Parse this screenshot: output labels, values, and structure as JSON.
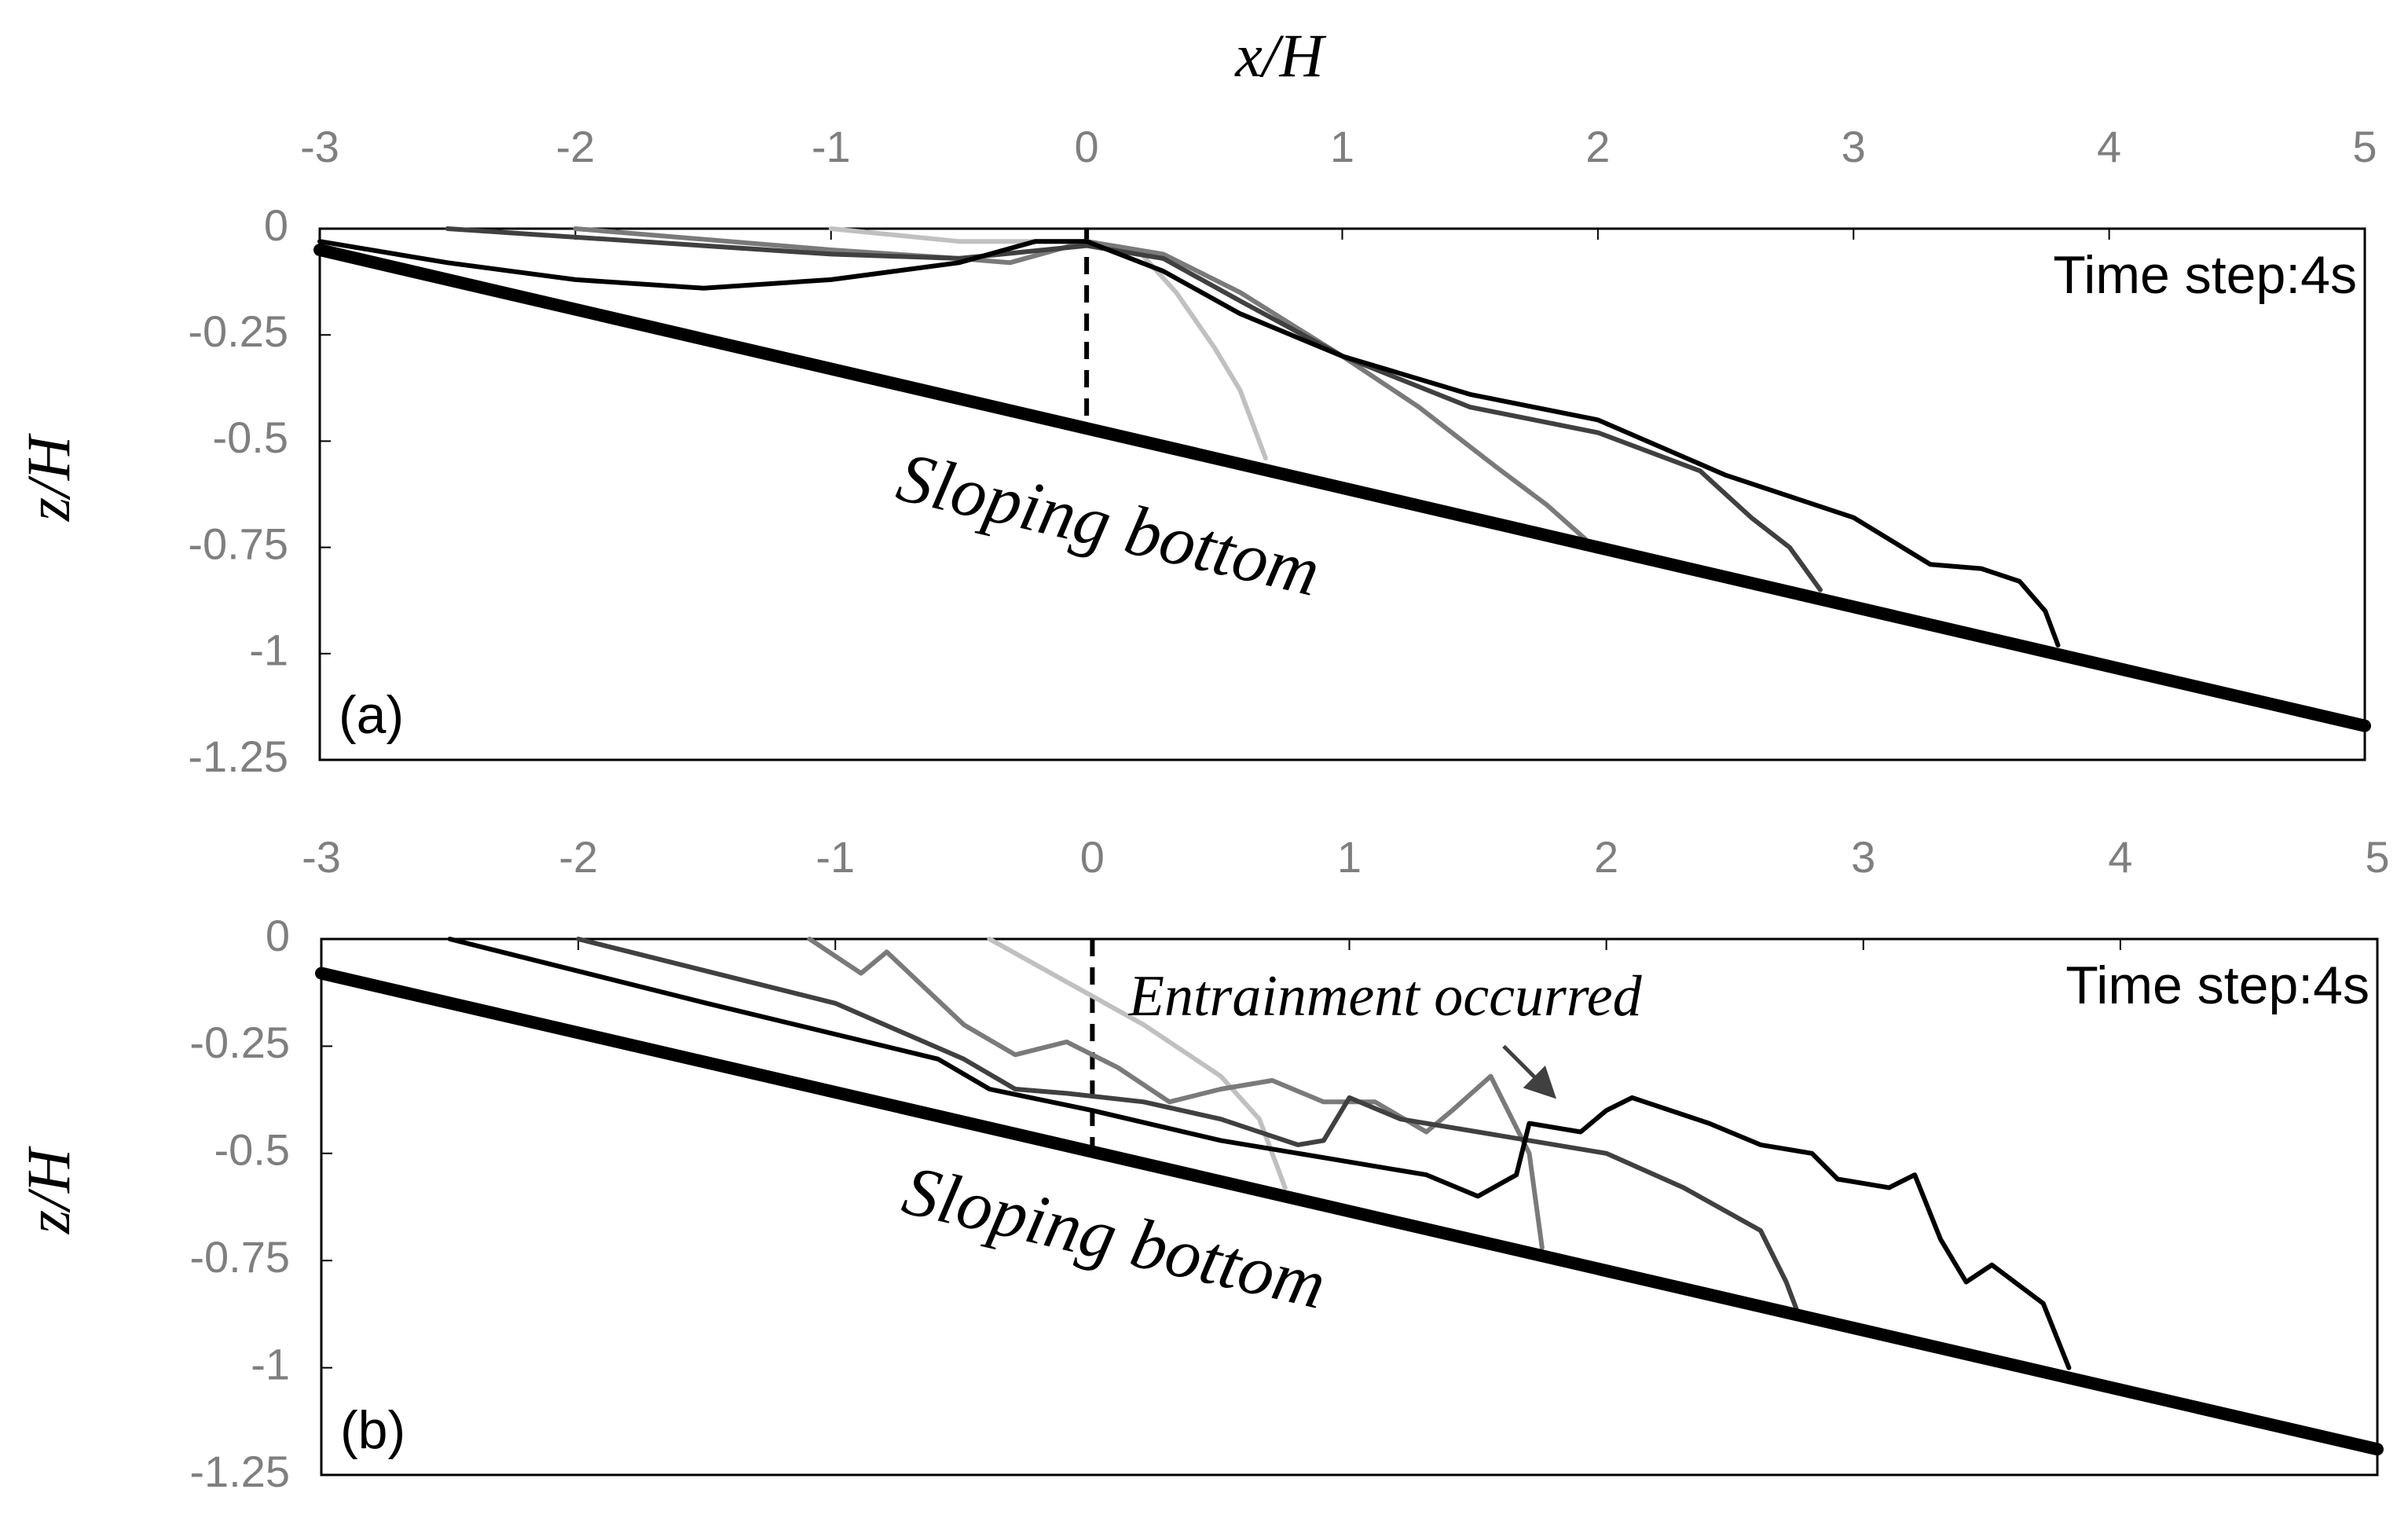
{
  "chart_data": [
    {
      "type": "line",
      "x_label": "x/H",
      "y_label": "z/H",
      "panel_label": "(a)",
      "time_label": "Time step:4s",
      "bottom_label": "Sloping bottom",
      "xlim": [
        -3,
        5
      ],
      "xticks": [
        -3,
        -2,
        -1,
        0,
        1,
        2,
        3,
        4,
        5
      ],
      "ylim": [
        -1.25,
        0
      ],
      "yticks": [
        0,
        -0.25,
        -0.5,
        -0.75,
        -1,
        -1.25
      ],
      "bottom": {
        "color": "#000000",
        "x": [
          -3,
          5
        ],
        "values": [
          -0.05,
          -1.17
        ]
      },
      "reference_line": {
        "color": "#000000",
        "x": [
          0,
          0
        ],
        "values": [
          0,
          -0.47
        ]
      },
      "series": [
        {
          "color": "#c0c0c0",
          "x": [
            -1,
            -0.5,
            0,
            0.2,
            0.35,
            0.5,
            0.6,
            0.7
          ],
          "values": [
            0,
            -0.03,
            -0.03,
            -0.05,
            -0.15,
            -0.28,
            -0.38,
            -0.54
          ]
        },
        {
          "color": "#7a7a7a",
          "x": [
            -2,
            -1,
            -0.5,
            -0.3,
            0,
            0.3,
            0.6,
            1,
            1.3,
            1.6,
            1.8,
            1.95
          ],
          "values": [
            0,
            -0.05,
            -0.07,
            -0.08,
            -0.03,
            -0.06,
            -0.15,
            -0.3,
            -0.42,
            -0.56,
            -0.65,
            -0.73
          ]
        },
        {
          "color": "#404040",
          "x": [
            -2.5,
            -1.5,
            -1,
            -0.5,
            0,
            0.3,
            0.6,
            1,
            1.5,
            2,
            2.4,
            2.6,
            2.75,
            2.87
          ],
          "values": [
            0,
            -0.04,
            -0.06,
            -0.07,
            -0.04,
            -0.07,
            -0.17,
            -0.3,
            -0.42,
            -0.48,
            -0.57,
            -0.68,
            -0.75,
            -0.85
          ]
        },
        {
          "color": "#000000",
          "x": [
            -3,
            -2.5,
            -2,
            -1.5,
            -1,
            -0.5,
            -0.2,
            0,
            0.3,
            0.6,
            1,
            1.5,
            2,
            2.5,
            3,
            3.3,
            3.5,
            3.65,
            3.75,
            3.8
          ],
          "values": [
            -0.03,
            -0.08,
            -0.12,
            -0.14,
            -0.12,
            -0.08,
            -0.03,
            -0.03,
            -0.1,
            -0.2,
            -0.3,
            -0.39,
            -0.45,
            -0.58,
            -0.68,
            -0.79,
            -0.8,
            -0.83,
            -0.9,
            -0.98
          ]
        }
      ]
    },
    {
      "type": "line",
      "y_label": "z/H",
      "panel_label": "(b)",
      "time_label": "Time step:4s",
      "bottom_label": "Sloping bottom",
      "annotation": "Entrainment occurred",
      "xlim": [
        -3,
        5
      ],
      "xticks": [
        -3,
        -2,
        -1,
        0,
        1,
        2,
        3,
        4,
        5
      ],
      "ylim": [
        -1.25,
        0
      ],
      "yticks": [
        0,
        -0.25,
        -0.5,
        -0.75,
        -1,
        -1.25
      ],
      "bottom": {
        "color": "#000000",
        "x": [
          -3,
          5
        ],
        "values": [
          -0.08,
          -1.19
        ]
      },
      "reference_line": {
        "color": "#000000",
        "x": [
          0,
          0
        ],
        "values": [
          0,
          -0.5
        ]
      },
      "series": [
        {
          "color": "#c0c0c0",
          "x": [
            -0.4,
            -0.1,
            0.2,
            0.5,
            0.65,
            0.75
          ],
          "values": [
            0,
            -0.1,
            -0.2,
            -0.32,
            -0.42,
            -0.58
          ]
        },
        {
          "color": "#7a7a7a",
          "x": [
            -1.1,
            -0.9,
            -0.8,
            -0.5,
            -0.3,
            -0.1,
            0.1,
            0.3,
            0.5,
            0.7,
            0.9,
            1.1,
            1.3,
            1.4,
            1.55,
            1.7,
            1.75
          ],
          "values": [
            0,
            -0.08,
            -0.03,
            -0.2,
            -0.27,
            -0.24,
            -0.3,
            -0.38,
            -0.35,
            -0.33,
            -0.38,
            -0.38,
            -0.45,
            -0.4,
            -0.32,
            -0.5,
            -0.72
          ]
        },
        {
          "color": "#404040",
          "x": [
            -2,
            -1,
            -0.5,
            -0.3,
            -0.1,
            0.2,
            0.5,
            0.8,
            0.9,
            1,
            1.2,
            1.5,
            2,
            2.3,
            2.6,
            2.7,
            2.75
          ],
          "values": [
            0,
            -0.15,
            -0.28,
            -0.35,
            -0.36,
            -0.38,
            -0.42,
            -0.48,
            -0.47,
            -0.37,
            -0.42,
            -0.45,
            -0.5,
            -0.58,
            -0.68,
            -0.8,
            -0.88
          ]
        },
        {
          "color": "#000000",
          "x": [
            -2.5,
            -1.5,
            -0.6,
            -0.4,
            0,
            0.5,
            1,
            1.3,
            1.5,
            1.65,
            1.7,
            1.9,
            2,
            2.1,
            2.4,
            2.6,
            2.8,
            2.9,
            3.1,
            3.2,
            3.3,
            3.4,
            3.5,
            3.7,
            3.8
          ],
          "values": [
            0,
            -0.15,
            -0.28,
            -0.35,
            -0.4,
            -0.47,
            -0.52,
            -0.55,
            -0.6,
            -0.55,
            -0.43,
            -0.45,
            -0.4,
            -0.37,
            -0.43,
            -0.48,
            -0.5,
            -0.56,
            -0.58,
            -0.55,
            -0.7,
            -0.8,
            -0.76,
            -0.85,
            -1.0
          ]
        }
      ]
    }
  ]
}
